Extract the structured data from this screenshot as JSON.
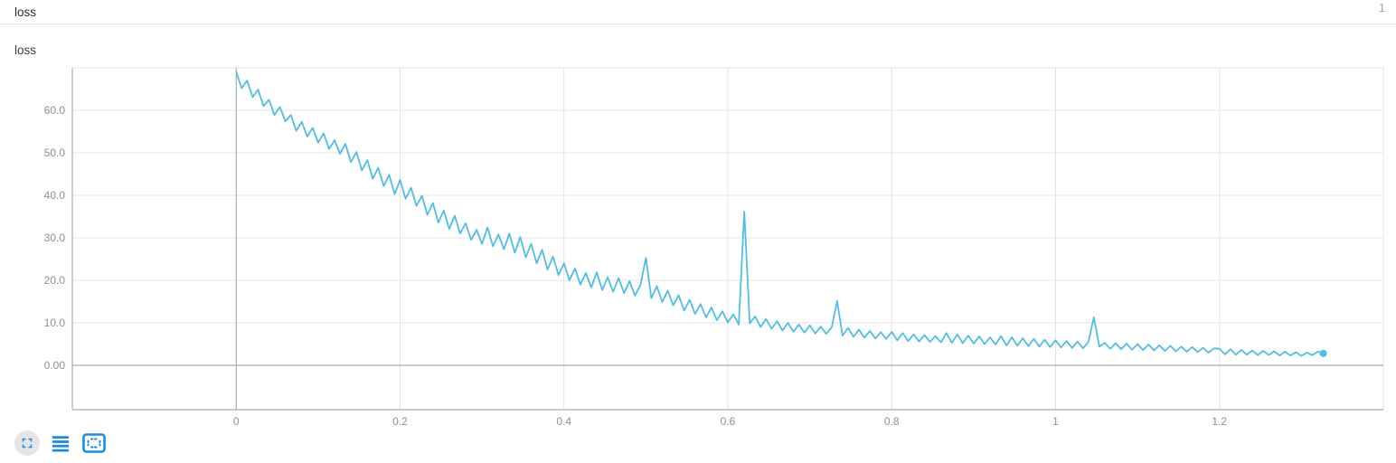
{
  "header": {
    "title": "loss",
    "page_indicator": "1"
  },
  "chart": {
    "title": "loss"
  },
  "toolbar": {
    "buttons": [
      {
        "name": "fullscreen",
        "icon": "fullscreen-icon"
      },
      {
        "name": "data-table",
        "icon": "data-table-icon"
      },
      {
        "name": "fit-domain-to-data",
        "icon": "fit-domain-icon"
      }
    ]
  },
  "colors": {
    "line": "#4fbde8",
    "icon_accent": "#1e88e5",
    "axis_dark": "#9a9a9a",
    "grid_light": "#e4e4e4",
    "tick_label": "#8f8f8f"
  },
  "chart_data": {
    "type": "line",
    "title": "loss",
    "xlabel": "",
    "ylabel": "",
    "xlim": [
      -0.2,
      1.4
    ],
    "ylim": [
      -10.43,
      70
    ],
    "grid": true,
    "legend": "none",
    "x_ticks": [
      {
        "value": 0,
        "label": "0"
      },
      {
        "value": 0.2,
        "label": "0.2"
      },
      {
        "value": 0.4,
        "label": "0.4"
      },
      {
        "value": 0.6,
        "label": "0.6"
      },
      {
        "value": 0.8,
        "label": "0.8"
      },
      {
        "value": 1,
        "label": "1"
      },
      {
        "value": 1.2,
        "label": "1.2"
      }
    ],
    "y_ticks": [
      {
        "value": 0,
        "label": "0.00"
      },
      {
        "value": 10,
        "label": "10.0"
      },
      {
        "value": 20,
        "label": "20.0"
      },
      {
        "value": 30,
        "label": "30.0"
      },
      {
        "value": 40,
        "label": "40.0"
      },
      {
        "value": 50,
        "label": "50.0"
      },
      {
        "value": 60,
        "label": "60.0"
      }
    ],
    "series": [
      {
        "name": "loss",
        "color": "#4fbde8",
        "x_start": 0,
        "x_step": 0.006667,
        "end_marker": true,
        "values": [
          69.0,
          65.2,
          67.0,
          63.1,
          64.9,
          61.0,
          62.5,
          58.9,
          60.8,
          57.4,
          58.9,
          55.2,
          57.3,
          53.8,
          55.9,
          52.4,
          54.6,
          50.9,
          53.0,
          49.8,
          52.1,
          47.8,
          50.2,
          45.9,
          48.3,
          43.9,
          46.5,
          42.2,
          44.8,
          40.3,
          43.6,
          39.2,
          41.8,
          37.5,
          39.9,
          35.4,
          38.2,
          33.6,
          36.4,
          32.1,
          35.2,
          31.0,
          33.4,
          29.5,
          31.9,
          28.6,
          32.4,
          28.0,
          30.8,
          27.3,
          31.0,
          26.5,
          30.2,
          25.4,
          28.6,
          24.0,
          27.2,
          22.5,
          25.6,
          21.2,
          24.0,
          20.0,
          22.8,
          19.0,
          21.7,
          18.3,
          21.9,
          17.7,
          20.7,
          17.3,
          20.5,
          17.0,
          19.8,
          16.4,
          18.9,
          25.3,
          15.8,
          18.6,
          14.9,
          17.6,
          14.1,
          16.5,
          12.9,
          15.4,
          12.1,
          14.4,
          11.3,
          13.6,
          10.6,
          12.7,
          10.1,
          12.0,
          9.6,
          36.2,
          9.9,
          11.5,
          9.0,
          10.9,
          8.6,
          10.4,
          8.2,
          10.0,
          7.9,
          9.6,
          7.7,
          9.4,
          7.5,
          9.1,
          7.4,
          8.9,
          15.1,
          7.0,
          8.8,
          6.7,
          8.4,
          6.5,
          8.1,
          6.3,
          7.8,
          6.2,
          7.9,
          5.9,
          7.6,
          5.7,
          7.3,
          5.6,
          7.1,
          5.5,
          6.9,
          5.4,
          7.6,
          5.3,
          7.3,
          5.2,
          7.0,
          5.1,
          6.8,
          5.0,
          6.6,
          4.9,
          6.9,
          4.7,
          6.6,
          4.6,
          6.4,
          4.5,
          6.2,
          4.4,
          6.0,
          4.3,
          5.9,
          4.2,
          5.7,
          4.1,
          5.6,
          4.0,
          5.5,
          11.3,
          4.4,
          5.3,
          3.9,
          5.2,
          3.8,
          5.1,
          3.7,
          5.0,
          3.6,
          4.9,
          3.5,
          4.7,
          3.4,
          4.6,
          3.3,
          4.4,
          3.2,
          4.3,
          3.1,
          4.1,
          3.0,
          4.0,
          3.9,
          2.6,
          3.8,
          2.5,
          3.6,
          2.5,
          3.5,
          2.4,
          3.4,
          2.4,
          3.3,
          2.3,
          3.2,
          2.3,
          3.1,
          2.2,
          3.0,
          2.4,
          3.2,
          2.8
        ]
      }
    ]
  }
}
